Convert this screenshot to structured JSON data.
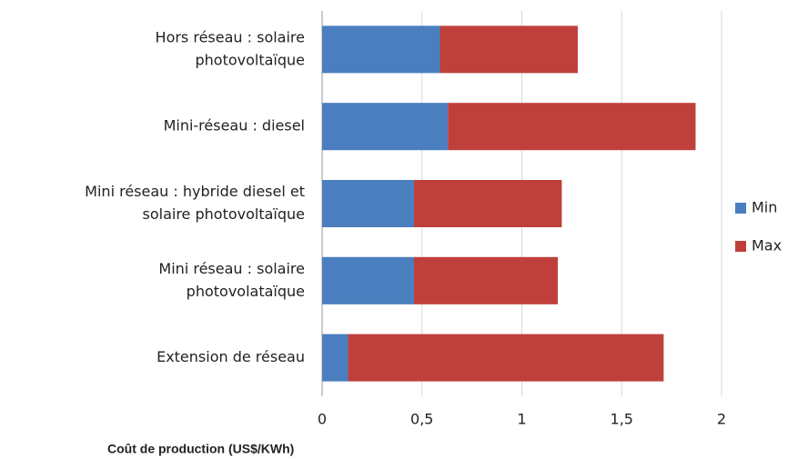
{
  "chart_data": {
    "type": "stacked_barh",
    "categories": [
      [
        "Hors réseau : solaire",
        "photovoltaïque"
      ],
      [
        "Mini-réseau : diesel"
      ],
      [
        "Mini réseau : hybride diesel et",
        "solaire photovoltaïque"
      ],
      [
        "Mini réseau : solaire",
        "photovolataïque"
      ],
      [
        "Extension de réseau"
      ]
    ],
    "series": [
      {
        "name": "Min",
        "color": "#4a7ebf",
        "values": [
          0.59,
          0.63,
          0.46,
          0.46,
          0.13
        ]
      },
      {
        "name": "Max",
        "color": "#bf403b",
        "values": [
          0.69,
          1.24,
          0.74,
          0.72,
          1.58
        ]
      }
    ],
    "xlabel": "Coût de production (US$/KWh)",
    "xlim": [
      0,
      2
    ],
    "xticks": [
      0,
      {
        "value": 0.5,
        "label": "0,5"
      },
      1,
      {
        "value": 1.5,
        "label": "1,5"
      },
      2
    ],
    "grid": true,
    "legend": "right"
  }
}
